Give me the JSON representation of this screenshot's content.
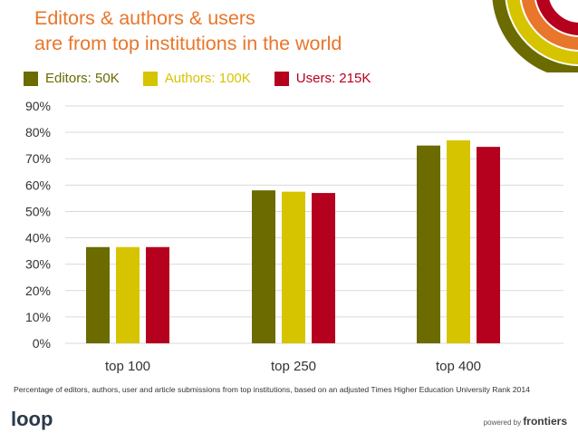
{
  "header": {
    "title_line1": "Editors & authors & users",
    "title_line2": "are from top institutions in the world"
  },
  "colors": {
    "title": "#e8762b",
    "editors": "#6b6b00",
    "authors": "#d6c400",
    "users": "#b5001e",
    "grid": "#d9d9d9"
  },
  "chart_data": {
    "type": "bar",
    "categories": [
      "top 100",
      "top 250",
      "top 400"
    ],
    "series": [
      {
        "name": "Editors: 50K",
        "values": [
          36.5,
          58,
          75
        ]
      },
      {
        "name": "Authors: 100K",
        "values": [
          36.5,
          57.5,
          77
        ]
      },
      {
        "name": "Users: 215K",
        "values": [
          36.5,
          57,
          74.5
        ]
      }
    ],
    "ylim": [
      0,
      90
    ],
    "yticks": [
      "0%",
      "10%",
      "20%",
      "30%",
      "40%",
      "50%",
      "60%",
      "70%",
      "80%",
      "90%"
    ],
    "grid": true,
    "legend": "top-left"
  },
  "footer": {
    "caption": "Percentage of editors, authors, user and article submissions from top institutions, based on an adjusted Times Higher Education University Rank 2014",
    "logo": "loop",
    "powered_prefix": "powered by",
    "powered_brand": "frontiers"
  }
}
